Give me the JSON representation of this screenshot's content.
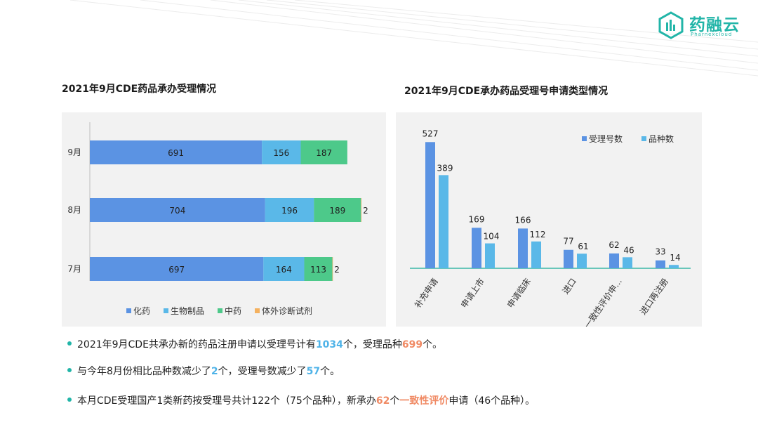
{
  "brand": {
    "name": "药融云",
    "sub": "Pharnexcloud"
  },
  "theme": {
    "accent": "#22b5a8",
    "chem": "#5b93e3",
    "bio": "#5ab8e8",
    "tcm": "#4dc98a",
    "ivd": "#f4b15f",
    "hl_blue": "#4fb3e8",
    "hl_orange": "#f08a64"
  },
  "chart_data": [
    {
      "type": "bar",
      "orientation": "horizontal",
      "stacked": true,
      "title": "2021年9月CDE药品承办受理情况",
      "categories": [
        "9月",
        "8月",
        "7月"
      ],
      "series": [
        {
          "name": "化药",
          "values": [
            691,
            704,
            697
          ],
          "color": "#5b93e3"
        },
        {
          "name": "生物制品",
          "values": [
            156,
            196,
            164
          ],
          "color": "#5ab8e8"
        },
        {
          "name": "中药",
          "values": [
            187,
            189,
            113
          ],
          "color": "#4dc98a"
        },
        {
          "name": "体外诊断试剂",
          "values": [
            0,
            2,
            2
          ],
          "color": "#f4b15f"
        }
      ],
      "legend": "bottom",
      "grid": false
    },
    {
      "type": "bar",
      "title": "2021年9月CDE承办药品受理号申请类型情况",
      "categories": [
        "补充申请",
        "申请上市",
        "申请临床",
        "进口",
        "一致性评价申...",
        "进口再注册"
      ],
      "series": [
        {
          "name": "受理号数",
          "values": [
            527,
            169,
            166,
            77,
            62,
            33
          ],
          "color": "#5b93e3"
        },
        {
          "name": "品种数",
          "values": [
            389,
            104,
            112,
            61,
            46,
            14
          ],
          "color": "#5ab8e8"
        }
      ],
      "legend": "top-right",
      "grid": false
    }
  ],
  "bullets": [
    {
      "parts": [
        {
          "t": "2021年9月CDE共承办新的药品注册申请以受理号计有",
          "c": ""
        },
        {
          "t": "1034",
          "c": "hl-blue"
        },
        {
          "t": "个，受理品种",
          "c": ""
        },
        {
          "t": "699",
          "c": "hl-orange"
        },
        {
          "t": "个。",
          "c": ""
        }
      ]
    },
    {
      "parts": [
        {
          "t": "与今年8月份相比品种数减少了",
          "c": ""
        },
        {
          "t": "2",
          "c": "hl-blue"
        },
        {
          "t": "个，受理号数减少了",
          "c": ""
        },
        {
          "t": "57",
          "c": "hl-blue"
        },
        {
          "t": "个。",
          "c": ""
        }
      ]
    },
    {
      "parts": [
        {
          "t": "本月CDE受理国产1类新药按受理号共计122个（75个品种），新承办",
          "c": ""
        },
        {
          "t": "62",
          "c": "hl-orange"
        },
        {
          "t": "个",
          "c": ""
        },
        {
          "t": "一致性评价",
          "c": "hl-orange"
        },
        {
          "t": "申请（46个品种）。",
          "c": ""
        }
      ]
    }
  ]
}
